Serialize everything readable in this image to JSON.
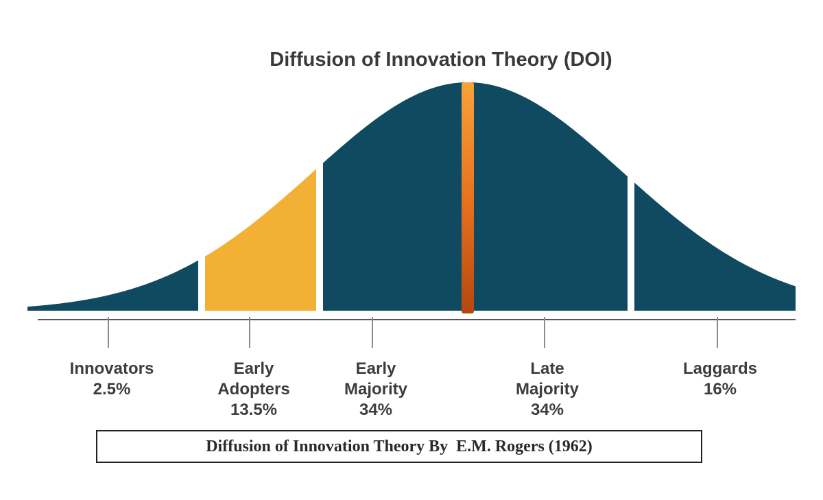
{
  "title": "Diffusion of Innovation Theory (DOI)",
  "caption": "Diffusion of Innovation Theory By  E.M. Rogers (1962)",
  "colors": {
    "curve_fill": "#0f4a61",
    "highlight_fill": "#f2b134",
    "mean_line": "#e8731f",
    "axis": "#555555",
    "text": "#3d3d3d"
  },
  "segments": [
    {
      "name": "Innovators",
      "lines": [
        "Innovators",
        "2.5%"
      ],
      "percent": 2.5,
      "highlighted": false
    },
    {
      "name": "Early Adopters",
      "lines": [
        "Early",
        "Adopters",
        "13.5%"
      ],
      "percent": 13.5,
      "highlighted": true
    },
    {
      "name": "Early Majority",
      "lines": [
        "Early",
        "Majority",
        "34%"
      ],
      "percent": 34,
      "highlighted": false
    },
    {
      "name": "Late Majority",
      "lines": [
        "Late",
        "Majority",
        "34%"
      ],
      "percent": 34,
      "highlighted": false
    },
    {
      "name": "Laggards",
      "lines": [
        "Laggards",
        "16%"
      ],
      "percent": 16,
      "highlighted": false
    }
  ]
}
